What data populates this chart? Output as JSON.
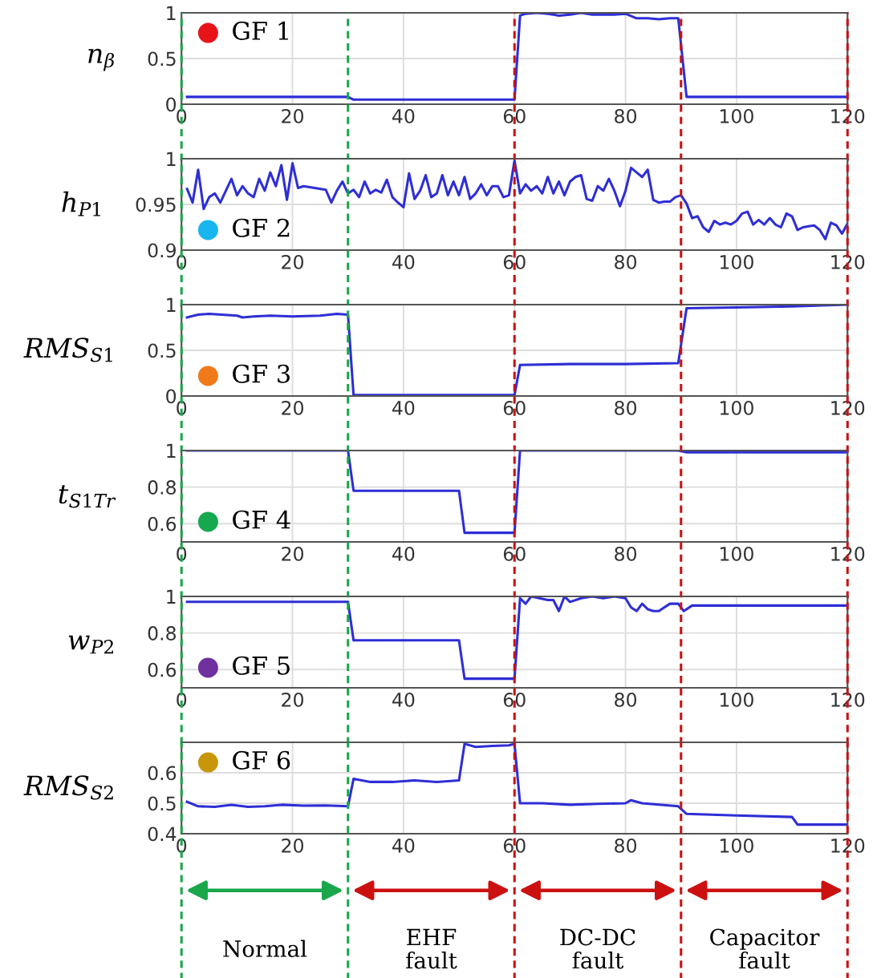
{
  "chart_data": [
    {
      "type": "line",
      "ylabel": "n$_{β}$",
      "xlim": [
        0,
        120
      ],
      "xticks": [
        0,
        20,
        40,
        60,
        80,
        100,
        120
      ],
      "ylim": [
        0,
        1
      ],
      "yticks": [
        0,
        0.5,
        1
      ],
      "grid": true,
      "series": [
        {
          "color": "#2e2ed6",
          "x": [
            1,
            30,
            31,
            60,
            61,
            62,
            64,
            66,
            67,
            68,
            70,
            72,
            74,
            76,
            78,
            80,
            82,
            84,
            86,
            88,
            89.5,
            91,
            120
          ],
          "values": [
            0.08,
            0.08,
            0.05,
            0.05,
            0.97,
            0.99,
            1.0,
            0.99,
            0.98,
            0.97,
            0.98,
            1.0,
            0.98,
            0.98,
            0.98,
            0.99,
            0.94,
            0.94,
            0.93,
            0.94,
            0.94,
            0.08,
            0.08
          ]
        }
      ],
      "ref_lines": [
        {
          "axis": "x",
          "value": 0,
          "color": "#1aa64a",
          "line_style": "dashed"
        },
        {
          "axis": "x",
          "value": 30,
          "color": "#1aa64a",
          "line_style": "dashed"
        },
        {
          "axis": "x",
          "value": 60,
          "color": "#cc1111",
          "line_style": "dashed"
        },
        {
          "axis": "x",
          "value": 90,
          "color": "#cc1111",
          "line_style": "dashed"
        },
        {
          "axis": "x",
          "value": 120,
          "color": "#cc1111",
          "line_style": "dashed"
        }
      ],
      "annotations": [
        "GF 1"
      ]
    },
    {
      "type": "line",
      "ylabel": "h$_{P1}$",
      "xlim": [
        0,
        120
      ],
      "xticks": [
        0,
        20,
        40,
        60,
        80,
        100,
        120
      ],
      "ylim": [
        0.9,
        1
      ],
      "yticks": [
        0.9,
        0.95,
        1
      ],
      "grid": true,
      "series": [
        {
          "color": "#2e2ed6",
          "x": [
            1,
            2,
            3,
            4,
            5,
            6,
            7,
            8,
            9,
            10,
            11,
            12,
            13,
            14,
            15,
            16,
            17,
            18,
            19,
            20,
            21,
            22,
            24,
            26,
            27,
            28,
            29,
            30,
            31,
            32,
            33,
            34,
            35,
            36,
            37,
            38,
            39,
            40,
            41,
            42,
            43,
            44,
            45,
            46,
            47,
            48,
            49,
            50,
            51,
            52,
            53,
            54,
            55,
            56,
            57,
            58,
            59,
            60,
            61,
            62,
            63,
            64,
            65,
            66,
            67,
            68,
            69,
            70,
            71,
            72,
            73,
            74,
            75,
            76,
            77,
            78,
            79,
            80,
            81,
            82,
            83,
            84,
            85,
            86,
            87,
            88,
            89,
            90,
            91,
            92,
            93,
            94,
            95,
            96,
            97,
            98,
            99,
            100,
            101,
            102,
            103,
            104,
            105,
            106,
            107,
            108,
            109,
            110,
            111,
            112,
            113,
            114,
            115,
            116,
            117,
            118,
            119,
            120
          ],
          "values": [
            0.967,
            0.952,
            0.988,
            0.945,
            0.958,
            0.962,
            0.952,
            0.965,
            0.978,
            0.96,
            0.97,
            0.962,
            0.958,
            0.978,
            0.965,
            0.985,
            0.97,
            0.993,
            0.955,
            0.995,
            0.968,
            0.97,
            0.968,
            0.966,
            0.952,
            0.965,
            0.975,
            0.962,
            0.966,
            0.958,
            0.975,
            0.962,
            0.966,
            0.963,
            0.977,
            0.958,
            0.952,
            0.947,
            0.984,
            0.956,
            0.965,
            0.982,
            0.958,
            0.962,
            0.982,
            0.96,
            0.975,
            0.96,
            0.98,
            0.956,
            0.962,
            0.972,
            0.96,
            0.97,
            0.97,
            0.958,
            0.96,
            0.998,
            0.962,
            0.972,
            0.965,
            0.97,
            0.962,
            0.98,
            0.962,
            0.975,
            0.96,
            0.975,
            0.98,
            0.982,
            0.956,
            0.954,
            0.97,
            0.965,
            0.978,
            0.965,
            0.948,
            0.965,
            0.99,
            0.985,
            0.98,
            0.988,
            0.955,
            0.952,
            0.953,
            0.953,
            0.958,
            0.96,
            0.951,
            0.935,
            0.937,
            0.925,
            0.92,
            0.932,
            0.928,
            0.93,
            0.928,
            0.932,
            0.94,
            0.942,
            0.928,
            0.933,
            0.928,
            0.935,
            0.928,
            0.925,
            0.94,
            0.937,
            0.922,
            0.925,
            0.926,
            0.927,
            0.922,
            0.912,
            0.93,
            0.927,
            0.918,
            0.929
          ]
        }
      ],
      "ref_lines": [
        {
          "axis": "x",
          "value": 0,
          "color": "#1aa64a",
          "line_style": "dashed"
        },
        {
          "axis": "x",
          "value": 30,
          "color": "#1aa64a",
          "line_style": "dashed"
        },
        {
          "axis": "x",
          "value": 60,
          "color": "#cc1111",
          "line_style": "dashed"
        },
        {
          "axis": "x",
          "value": 90,
          "color": "#cc1111",
          "line_style": "dashed"
        },
        {
          "axis": "x",
          "value": 120,
          "color": "#cc1111",
          "line_style": "dashed"
        }
      ],
      "annotations": [
        "GF 2"
      ]
    },
    {
      "type": "line",
      "ylabel": "RMS$_{S1}$",
      "xlim": [
        0,
        120
      ],
      "xticks": [
        0,
        20,
        40,
        60,
        80,
        100,
        120
      ],
      "ylim": [
        0,
        1
      ],
      "yticks": [
        0,
        0.5,
        1
      ],
      "grid": true,
      "series": [
        {
          "color": "#2e2ed6",
          "x": [
            1,
            3,
            5,
            10,
            11,
            13,
            16,
            20,
            25,
            28,
            30,
            31,
            60,
            61,
            70,
            80,
            89.5,
            91,
            100,
            110,
            120
          ],
          "values": [
            0.86,
            0.89,
            0.9,
            0.88,
            0.86,
            0.87,
            0.88,
            0.87,
            0.88,
            0.9,
            0.89,
            0.01,
            0.01,
            0.34,
            0.35,
            0.35,
            0.36,
            0.96,
            0.97,
            0.98,
            1.0
          ]
        }
      ],
      "ref_lines": [
        {
          "axis": "x",
          "value": 0,
          "color": "#1aa64a",
          "line_style": "dashed"
        },
        {
          "axis": "x",
          "value": 30,
          "color": "#1aa64a",
          "line_style": "dashed"
        },
        {
          "axis": "x",
          "value": 60,
          "color": "#cc1111",
          "line_style": "dashed"
        },
        {
          "axis": "x",
          "value": 90,
          "color": "#cc1111",
          "line_style": "dashed"
        },
        {
          "axis": "x",
          "value": 120,
          "color": "#cc1111",
          "line_style": "dashed"
        }
      ],
      "annotations": [
        "GF 3"
      ]
    },
    {
      "type": "line",
      "ylabel": "t$_{S1Tr}$",
      "xlim": [
        0,
        120
      ],
      "xticks": [
        0,
        20,
        40,
        60,
        80,
        100,
        120
      ],
      "ylim": [
        0.5,
        1
      ],
      "yticks": [
        0.6,
        0.8,
        1
      ],
      "grid": true,
      "series": [
        {
          "color": "#2e2ed6",
          "x": [
            1,
            30,
            31,
            50,
            51,
            60,
            61,
            89.5,
            91,
            120
          ],
          "values": [
            1.0,
            1.0,
            0.78,
            0.78,
            0.55,
            0.55,
            1.0,
            1.0,
            0.99,
            0.99
          ]
        }
      ],
      "ref_lines": [
        {
          "axis": "x",
          "value": 0,
          "color": "#1aa64a",
          "line_style": "dashed"
        },
        {
          "axis": "x",
          "value": 30,
          "color": "#1aa64a",
          "line_style": "dashed"
        },
        {
          "axis": "x",
          "value": 60,
          "color": "#cc1111",
          "line_style": "dashed"
        },
        {
          "axis": "x",
          "value": 90,
          "color": "#cc1111",
          "line_style": "dashed"
        },
        {
          "axis": "x",
          "value": 120,
          "color": "#cc1111",
          "line_style": "dashed"
        }
      ],
      "annotations": [
        "GF 4"
      ]
    },
    {
      "type": "line",
      "ylabel": "w$_{P2}$",
      "xlim": [
        0,
        120
      ],
      "xticks": [
        0,
        20,
        40,
        60,
        80,
        100,
        120
      ],
      "ylim": [
        0.5,
        1
      ],
      "yticks": [
        0.6,
        0.8,
        1
      ],
      "grid": true,
      "series": [
        {
          "color": "#2e2ed6",
          "x": [
            1,
            30,
            31,
            50,
            51,
            60,
            61,
            62,
            63,
            66,
            67,
            68,
            69,
            70,
            72,
            74,
            76,
            78,
            80,
            81,
            82,
            83,
            84,
            85,
            86,
            88,
            89.5,
            90.5,
            92,
            100,
            120
          ],
          "values": [
            0.97,
            0.97,
            0.76,
            0.76,
            0.55,
            0.55,
            0.99,
            0.96,
            1.0,
            0.98,
            0.98,
            0.92,
            1.0,
            0.97,
            0.99,
            1.0,
            0.99,
            1.0,
            0.99,
            0.94,
            0.92,
            0.96,
            0.93,
            0.92,
            0.92,
            0.96,
            0.96,
            0.92,
            0.95,
            0.95,
            0.95
          ]
        }
      ],
      "ref_lines": [
        {
          "axis": "x",
          "value": 0,
          "color": "#1aa64a",
          "line_style": "dashed"
        },
        {
          "axis": "x",
          "value": 30,
          "color": "#1aa64a",
          "line_style": "dashed"
        },
        {
          "axis": "x",
          "value": 60,
          "color": "#cc1111",
          "line_style": "dashed"
        },
        {
          "axis": "x",
          "value": 90,
          "color": "#cc1111",
          "line_style": "dashed"
        },
        {
          "axis": "x",
          "value": 120,
          "color": "#cc1111",
          "line_style": "dashed"
        }
      ],
      "annotations": [
        "GF 5"
      ]
    },
    {
      "type": "line",
      "ylabel": "RMS$_{S2}$",
      "xlim": [
        0,
        120
      ],
      "xticks": [
        0,
        20,
        40,
        60,
        80,
        100,
        120
      ],
      "ylim": [
        0.4,
        0.7
      ],
      "yticks": [
        0.4,
        0.5,
        0.6
      ],
      "grid": true,
      "series": [
        {
          "color": "#2e2ed6",
          "x": [
            1,
            3,
            6,
            9,
            12,
            15,
            18,
            22,
            26,
            30,
            31,
            34,
            38,
            42,
            46,
            50,
            51,
            53,
            56,
            59,
            60,
            61,
            65,
            70,
            75,
            80,
            81,
            83,
            89.5,
            91,
            100,
            110,
            111,
            120
          ],
          "values": [
            0.505,
            0.49,
            0.488,
            0.495,
            0.488,
            0.49,
            0.495,
            0.492,
            0.493,
            0.49,
            0.58,
            0.57,
            0.57,
            0.575,
            0.57,
            0.575,
            0.695,
            0.685,
            0.688,
            0.69,
            0.695,
            0.5,
            0.5,
            0.495,
            0.498,
            0.5,
            0.51,
            0.5,
            0.49,
            0.465,
            0.46,
            0.455,
            0.43,
            0.43
          ]
        }
      ],
      "ref_lines": [
        {
          "axis": "x",
          "value": 0,
          "color": "#1aa64a",
          "line_style": "dashed"
        },
        {
          "axis": "x",
          "value": 30,
          "color": "#1aa64a",
          "line_style": "dashed"
        },
        {
          "axis": "x",
          "value": 60,
          "color": "#cc1111",
          "line_style": "dashed"
        },
        {
          "axis": "x",
          "value": 90,
          "color": "#cc1111",
          "line_style": "dashed"
        },
        {
          "axis": "x",
          "value": 120,
          "color": "#cc1111",
          "line_style": "dashed"
        }
      ],
      "annotations": [
        "GF 6",
        "Normal",
        "EHF\nfault",
        "DC-DC\nfault",
        "Capacitor\nfault"
      ]
    }
  ]
}
